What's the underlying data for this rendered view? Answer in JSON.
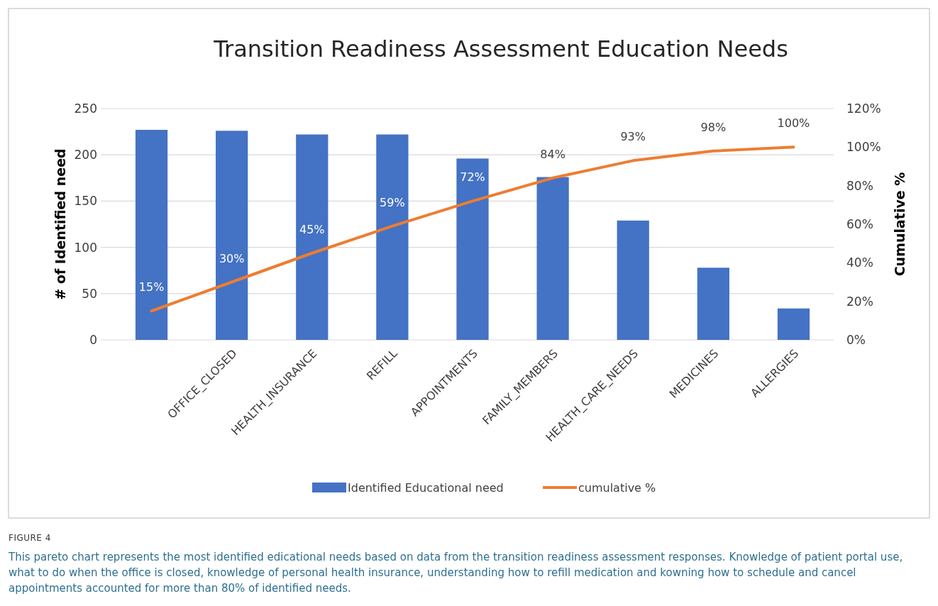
{
  "chart_data": {
    "type": "bar",
    "title": "Transition Readiness Assessment Education Needs",
    "ylabel": "# of Identified need",
    "y2label": "Cumulative %",
    "categories": [
      null,
      "OFFICE_CLOSED",
      "HEALTH_INSURANCE",
      "REFILL",
      "APPOINTMENTS",
      "FAMILY_MEMBERS",
      "HEALTH_CARE_NEEDS",
      "MEDICINES",
      "ALLERGIES"
    ],
    "series": [
      {
        "name": "Identified Educational need",
        "color": "#4472c4",
        "values": [
          227,
          226,
          222,
          222,
          196,
          176,
          129,
          78,
          34
        ]
      },
      {
        "name": "cumulative %",
        "type": "line",
        "axis": "y2",
        "color": "#ed7d31",
        "values": [
          15,
          30,
          45,
          59,
          72,
          84,
          93,
          98,
          100
        ],
        "value_labels": [
          "15%",
          "30%",
          "45%",
          "59%",
          "72%",
          "84%",
          "93%",
          "98%",
          "100%"
        ]
      }
    ],
    "ylim": [
      0,
      250
    ],
    "yticks": [
      0,
      50,
      100,
      150,
      200,
      250
    ],
    "y2lim": [
      0,
      120
    ],
    "y2ticks": [
      {
        "value": 0,
        "label": "0%"
      },
      {
        "value": 20,
        "label": "20%"
      },
      {
        "value": 40,
        "label": "40%"
      },
      {
        "value": 60,
        "label": "60%"
      },
      {
        "value": 80,
        "label": "80%"
      },
      {
        "value": 100,
        "label": "100%"
      },
      {
        "value": 120,
        "label": "120%"
      }
    ],
    "grid": "y",
    "legend": "bottom",
    "marker": "none",
    "annotations": [
      "FIGURE 4",
      "This pareto chart represents the most identified edicational needs based on data from the transition readiness assessment responses. Knowledge of patient portal use, what to do when the office is closed, knowledge of personal health insurance, understanding how to refill medication and kowning how to schedule and cancel appointments accounted for more than 80% of identified needs."
    ]
  }
}
